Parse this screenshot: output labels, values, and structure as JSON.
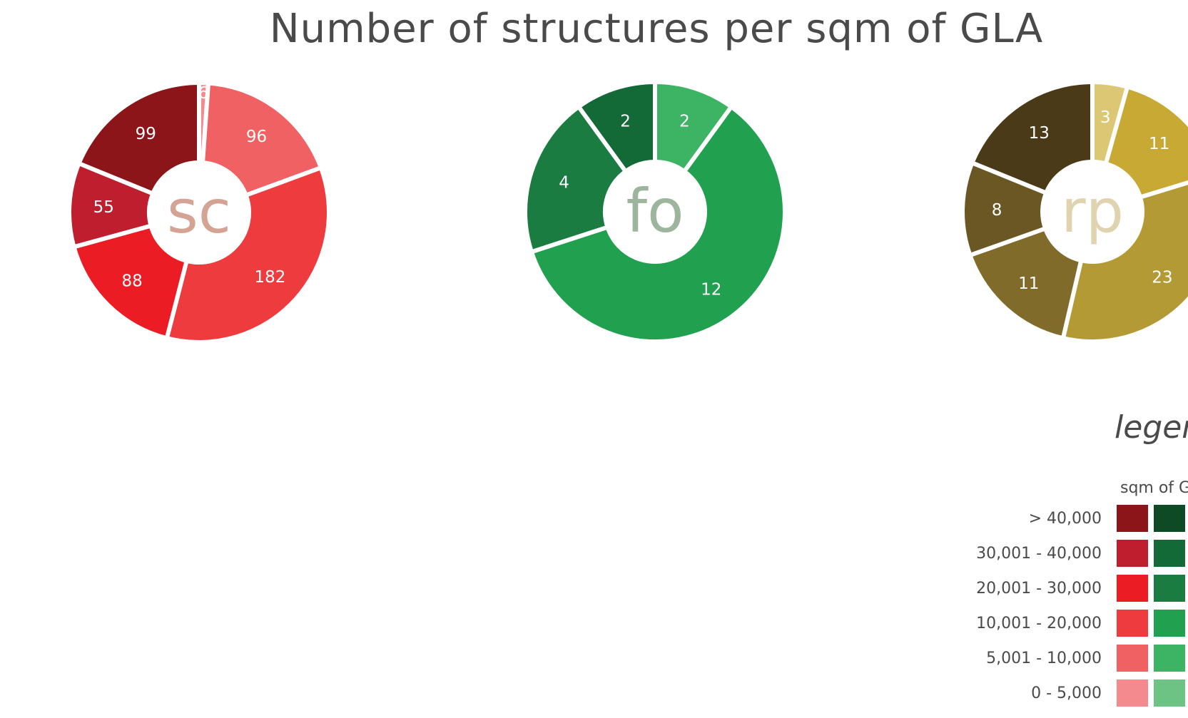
{
  "chart_data": [
    {
      "type": "pie",
      "center_label": "sc",
      "center_label_color": "#d4a393",
      "slices": [
        {
          "value": 6,
          "color": "#f48a8e"
        },
        {
          "value": 96,
          "color": "#f06163"
        },
        {
          "value": 182,
          "color": "#ee3b3e"
        },
        {
          "value": 88,
          "color": "#ec1c24"
        },
        {
          "value": 55,
          "color": "#be1e2d"
        },
        {
          "value": 99,
          "color": "#8b1519"
        }
      ]
    },
    {
      "type": "pie",
      "center_label": "fo",
      "center_label_color": "#9cb59c",
      "slices": [
        {
          "value": 2,
          "color": "#3cb464"
        },
        {
          "value": 12,
          "color": "#21a150"
        },
        {
          "value": 4,
          "color": "#1a7c41"
        },
        {
          "value": 2,
          "color": "#136a36"
        }
      ]
    },
    {
      "type": "pie",
      "center_label": "rp",
      "center_label_color": "#e0d3b0",
      "slices": [
        {
          "value": 3,
          "color": "#dcc774"
        },
        {
          "value": 11,
          "color": "#c7a934"
        },
        {
          "value": 23,
          "color": "#b39a35"
        },
        {
          "value": 11,
          "color": "#806b2a"
        },
        {
          "value": 8,
          "color": "#6b5724"
        },
        {
          "value": 13,
          "color": "#4a3a17"
        }
      ]
    }
  ],
  "title": "Number of structures per sqm of GLA",
  "legend": {
    "title": "legend",
    "header": "sqm of GLA",
    "rows": [
      {
        "range": "> 40,000",
        "colors": [
          "#8b1519",
          "#0f4a26"
        ]
      },
      {
        "range": "30,001 - 40,000",
        "colors": [
          "#be1e2d",
          "#136a36"
        ]
      },
      {
        "range": "20,001 - 30,000",
        "colors": [
          "#ec1c24",
          "#1a7c41"
        ]
      },
      {
        "range": "10,001 - 20,000",
        "colors": [
          "#ee3b3e",
          "#21a150"
        ]
      },
      {
        "range": "5,001 - 10,000",
        "colors": [
          "#f06163",
          "#3cb464"
        ]
      },
      {
        "range": "0 - 5,000",
        "colors": [
          "#f48a8e",
          "#6dc384"
        ]
      }
    ]
  }
}
